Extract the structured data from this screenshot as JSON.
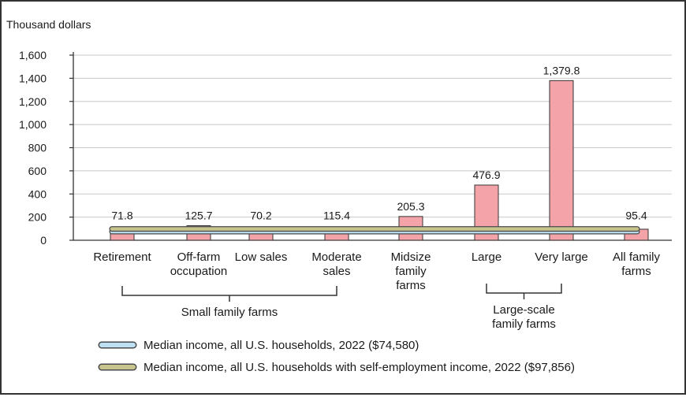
{
  "chart_data": {
    "type": "bar",
    "ylabel": "Thousand dollars",
    "ylim": [
      0,
      1600
    ],
    "yticks": [
      "0",
      "200",
      "400",
      "600",
      "800",
      "1,000",
      "1,200",
      "1,400",
      "1,600"
    ],
    "ytick_values": [
      0,
      200,
      400,
      600,
      800,
      1000,
      1200,
      1400,
      1600
    ],
    "grid": "horizontal",
    "categories": [
      [
        "Retirement"
      ],
      [
        "Off-farm",
        "occupation"
      ],
      [
        "Low sales"
      ],
      [
        "Moderate",
        "sales"
      ],
      [
        "Midsize",
        "family",
        "farms"
      ],
      [
        "Large"
      ],
      [
        "Very large"
      ],
      [
        "All family",
        "farms"
      ]
    ],
    "values": [
      71.8,
      125.7,
      70.2,
      115.4,
      205.3,
      476.9,
      1379.8,
      95.4
    ],
    "data_labels": [
      "71.8",
      "125.7",
      "70.2",
      "115.4",
      "205.3",
      "476.9",
      "1,379.8",
      "95.4"
    ],
    "bar_color": "#f4a3a8",
    "groups": [
      {
        "label": [
          "Small family farms"
        ],
        "from": 0,
        "to": 3
      },
      {
        "label": [
          "Large-scale",
          "family farms"
        ],
        "from": 5,
        "to": 6
      }
    ],
    "reference_lines": [
      {
        "name": "Median income, all U.S. households, 2022 ($74,580)",
        "value": 74.58,
        "color": "#bde0f3"
      },
      {
        "name": "Median income, all U.S. households with self-employment income, 2022 ($97,856)",
        "value": 97.856,
        "color": "#c8c48e"
      }
    ]
  }
}
